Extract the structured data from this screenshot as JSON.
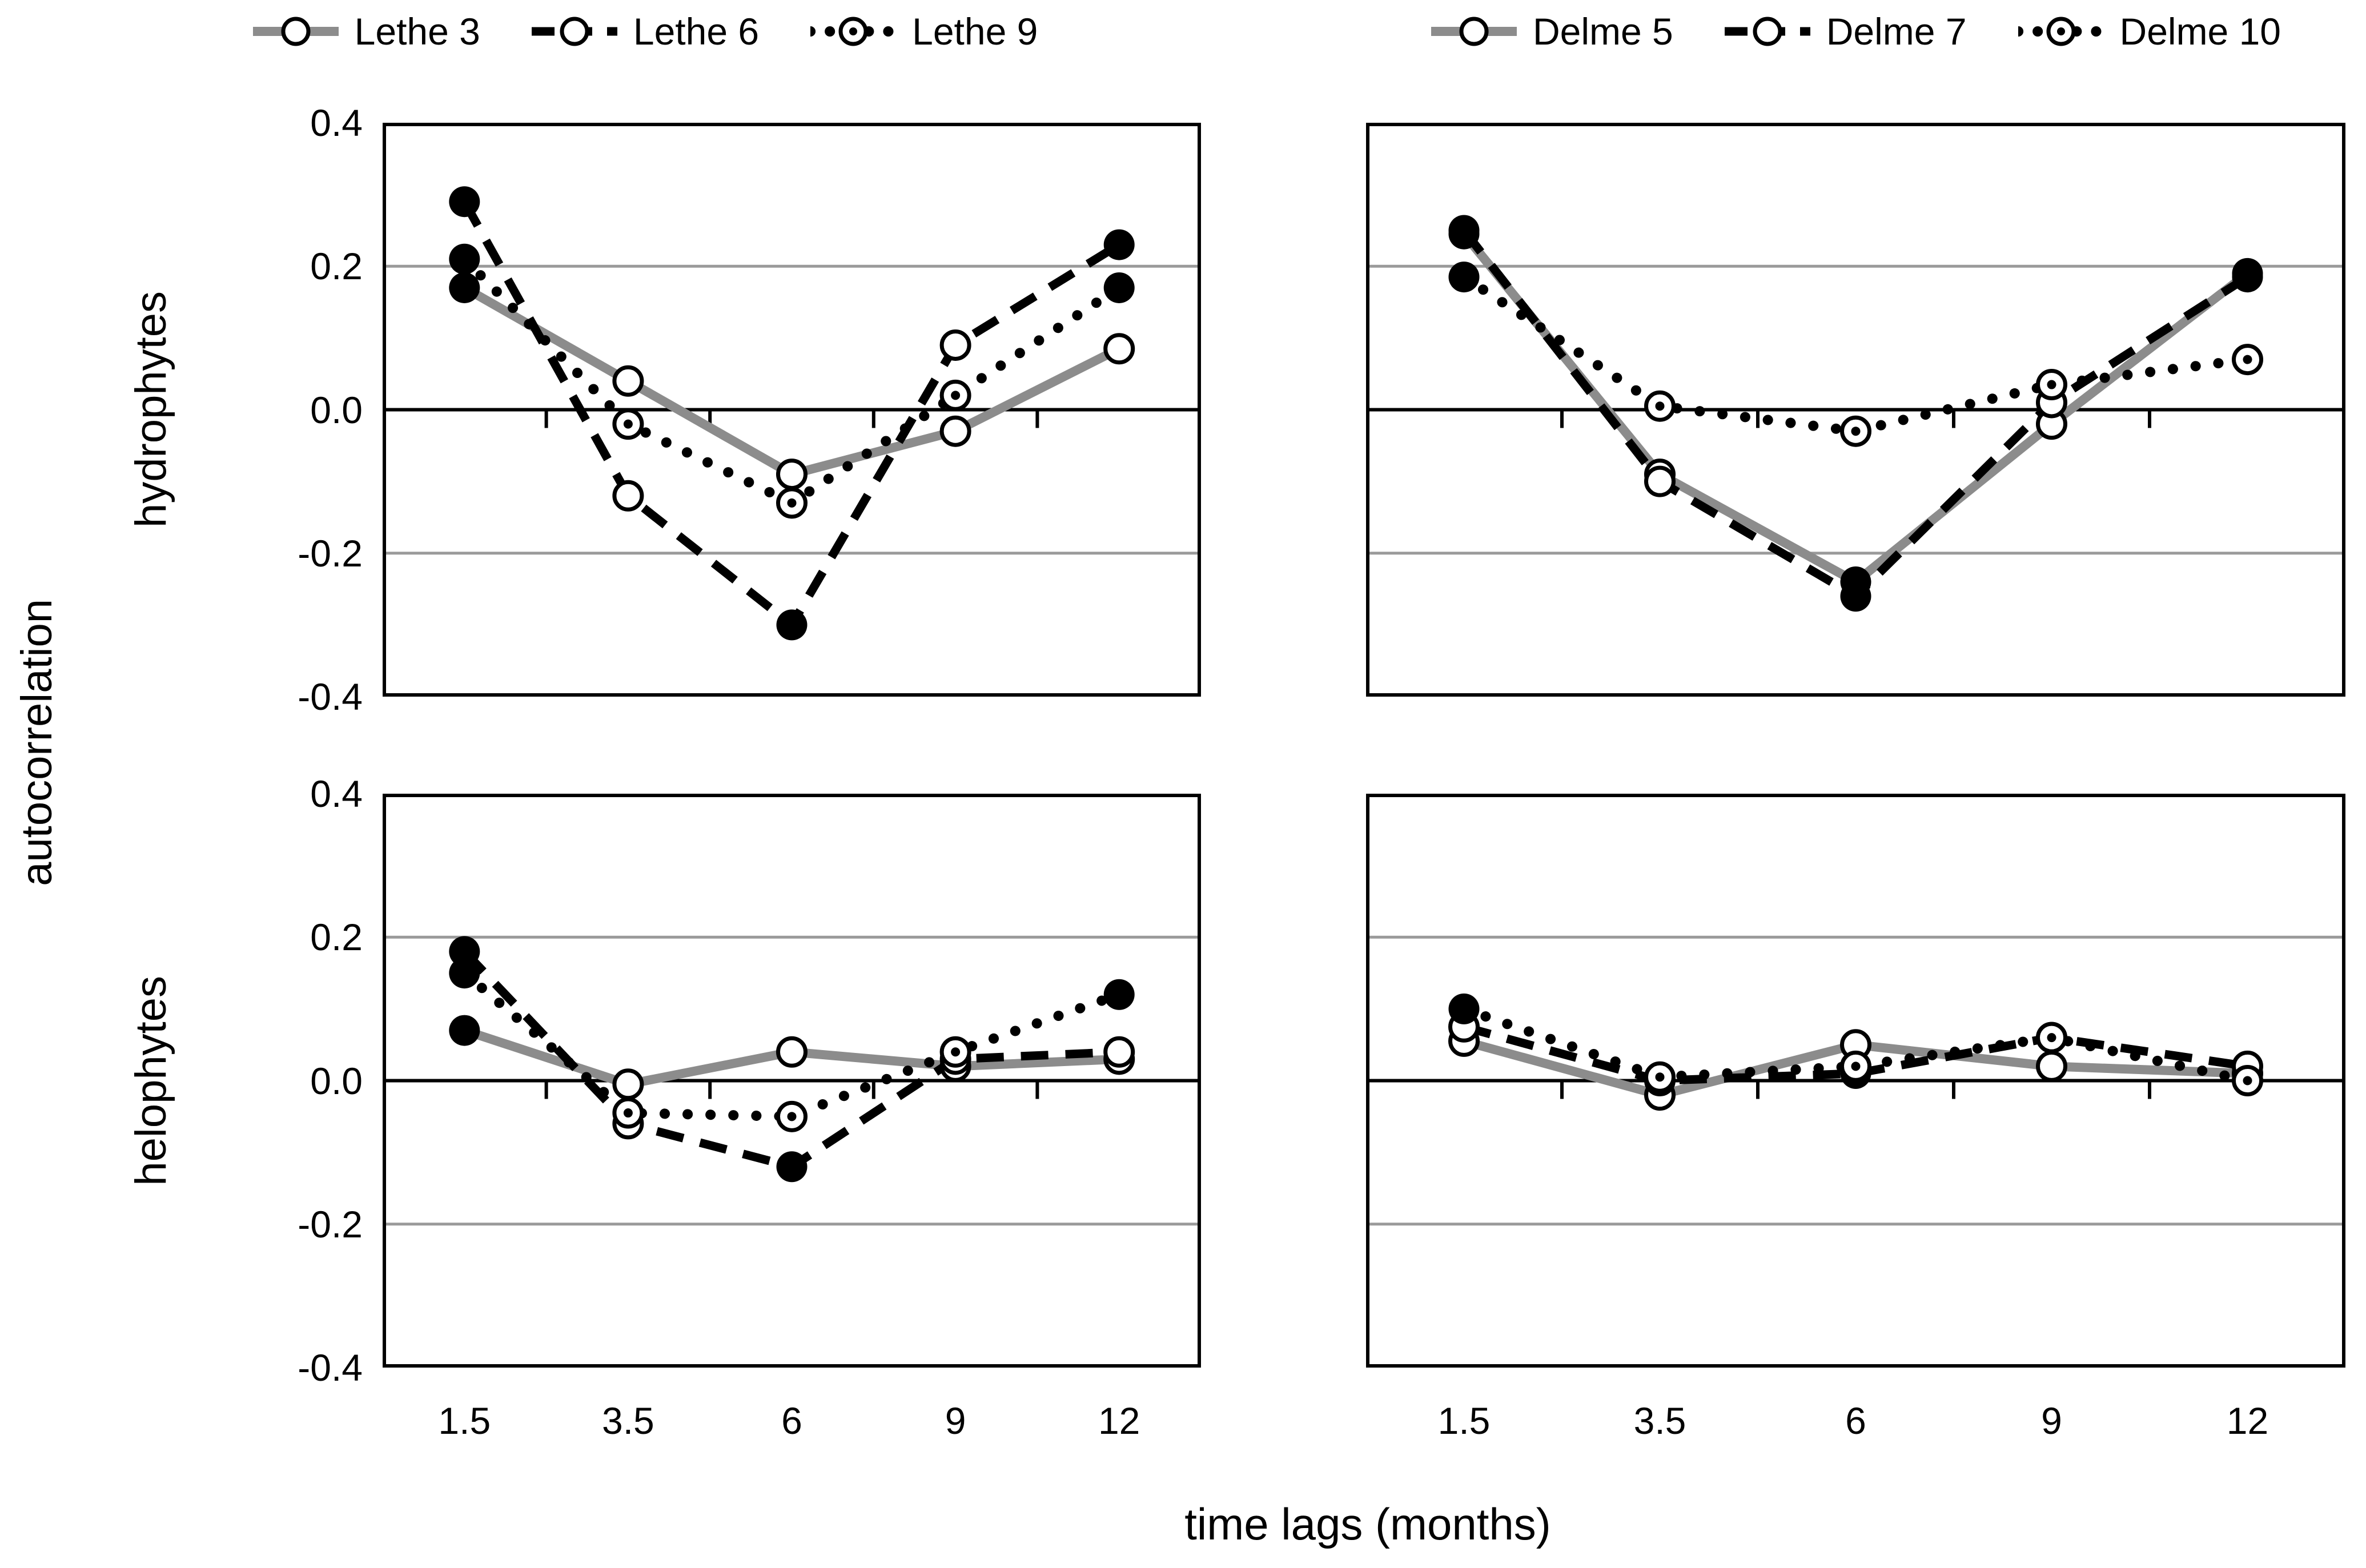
{
  "figure": {
    "y_axis_label": "autocorrelation",
    "x_axis_label": "time lags (months)",
    "row_labels": [
      "hydrophytes",
      "helophytes"
    ],
    "colors": {
      "gray_series": "#8c8c8c",
      "black_series": "#000000",
      "gridline": "#9a9a9a",
      "axis": "#000000"
    }
  },
  "legends": [
    {
      "items": [
        {
          "label": "Lethe 3",
          "style": "solid-gray"
        },
        {
          "label": "Lethe 6",
          "style": "dashed-black"
        },
        {
          "label": "Lethe 9",
          "style": "dotted-black"
        }
      ]
    },
    {
      "items": [
        {
          "label": "Delme 5",
          "style": "solid-gray"
        },
        {
          "label": "Delme 7",
          "style": "dashed-black"
        },
        {
          "label": "Delme 10",
          "style": "dotted-black"
        }
      ]
    }
  ],
  "chart_data": [
    {
      "type": "line",
      "row_label": "hydrophytes",
      "river": "Lethe",
      "x_categories": [
        "1.5",
        "3.5",
        "6",
        "9",
        "12"
      ],
      "ylim": [
        -0.4,
        0.4
      ],
      "y_ticks": [
        "0.4",
        "0.2",
        "0.0",
        "-0.2",
        "-0.4"
      ],
      "gridlines": [
        0.2,
        -0.2
      ],
      "show_x_ticklabels": false,
      "show_y_ticklabels": true,
      "series": [
        {
          "name": "Lethe 3",
          "style": "solid-gray",
          "values": [
            0.17,
            0.04,
            -0.09,
            -0.03,
            0.085
          ],
          "filled_markers": [
            true,
            false,
            false,
            false,
            false
          ]
        },
        {
          "name": "Lethe 6",
          "style": "dashed-black",
          "values": [
            0.29,
            -0.12,
            -0.3,
            0.09,
            0.23
          ],
          "filled_markers": [
            true,
            false,
            true,
            false,
            true
          ]
        },
        {
          "name": "Lethe 9",
          "style": "dotted-black",
          "values": [
            0.21,
            -0.02,
            -0.13,
            0.02,
            0.17
          ],
          "filled_markers": [
            true,
            false,
            false,
            false,
            true
          ]
        }
      ]
    },
    {
      "type": "line",
      "row_label": "hydrophytes",
      "river": "Delme",
      "x_categories": [
        "1.5",
        "3.5",
        "6",
        "9",
        "12"
      ],
      "ylim": [
        -0.4,
        0.4
      ],
      "y_ticks": [
        "0.4",
        "0.2",
        "0.0",
        "-0.2",
        "-0.4"
      ],
      "gridlines": [
        0.2,
        -0.2
      ],
      "show_x_ticklabels": false,
      "show_y_ticklabels": false,
      "series": [
        {
          "name": "Delme 5",
          "style": "solid-gray",
          "values": [
            0.245,
            -0.09,
            -0.24,
            -0.02,
            0.19
          ],
          "filled_markers": [
            true,
            false,
            true,
            false,
            true
          ]
        },
        {
          "name": "Delme 7",
          "style": "dashed-black",
          "values": [
            0.25,
            -0.1,
            -0.26,
            0.01,
            0.185
          ],
          "filled_markers": [
            true,
            false,
            true,
            false,
            true
          ]
        },
        {
          "name": "Delme 10",
          "style": "dotted-black",
          "values": [
            0.185,
            0.005,
            -0.03,
            0.035,
            0.07
          ],
          "filled_markers": [
            true,
            false,
            false,
            false,
            false
          ]
        }
      ]
    },
    {
      "type": "line",
      "row_label": "helophytes",
      "river": "Lethe",
      "x_categories": [
        "1.5",
        "3.5",
        "6",
        "9",
        "12"
      ],
      "ylim": [
        -0.4,
        0.4
      ],
      "y_ticks": [
        "0.4",
        "0.2",
        "0.0",
        "-0.2",
        "-0.4"
      ],
      "gridlines": [
        0.2,
        -0.2
      ],
      "show_x_ticklabels": true,
      "show_y_ticklabels": true,
      "series": [
        {
          "name": "Lethe 3",
          "style": "solid-gray",
          "values": [
            0.07,
            -0.005,
            0.04,
            0.02,
            0.03
          ],
          "filled_markers": [
            true,
            false,
            false,
            false,
            false
          ]
        },
        {
          "name": "Lethe 6",
          "style": "dashed-black",
          "values": [
            0.18,
            -0.06,
            -0.12,
            0.03,
            0.04
          ],
          "filled_markers": [
            true,
            false,
            true,
            false,
            false
          ]
        },
        {
          "name": "Lethe 9",
          "style": "dotted-black",
          "values": [
            0.15,
            -0.045,
            -0.05,
            0.04,
            0.12
          ],
          "filled_markers": [
            true,
            false,
            false,
            false,
            true
          ]
        }
      ]
    },
    {
      "type": "line",
      "row_label": "helophytes",
      "river": "Delme",
      "x_categories": [
        "1.5",
        "3.5",
        "6",
        "9",
        "12"
      ],
      "ylim": [
        -0.4,
        0.4
      ],
      "y_ticks": [
        "0.4",
        "0.2",
        "0.0",
        "-0.2",
        "-0.4"
      ],
      "gridlines": [
        0.2,
        -0.2
      ],
      "show_x_ticklabels": true,
      "show_y_ticklabels": false,
      "series": [
        {
          "name": "Delme 5",
          "style": "solid-gray",
          "values": [
            0.055,
            -0.02,
            0.05,
            0.02,
            0.01
          ],
          "filled_markers": [
            false,
            false,
            false,
            false,
            false
          ]
        },
        {
          "name": "Delme 7",
          "style": "dashed-black",
          "values": [
            0.075,
            0.0,
            0.01,
            0.06,
            0.02
          ],
          "filled_markers": [
            false,
            false,
            true,
            false,
            false
          ]
        },
        {
          "name": "Delme 10",
          "style": "dotted-black",
          "values": [
            0.1,
            0.005,
            0.02,
            0.06,
            0.0
          ],
          "filled_markers": [
            true,
            false,
            false,
            false,
            false
          ]
        }
      ]
    }
  ],
  "layout_note": ""
}
